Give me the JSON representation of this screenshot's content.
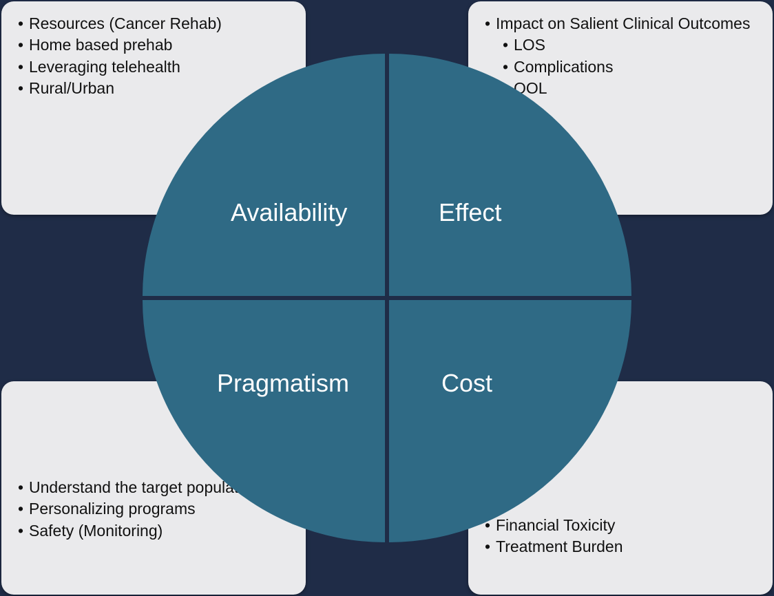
{
  "diagram": {
    "type": "infographic",
    "background_color": "#1f2c47",
    "box_background": "#eaeaec",
    "box_text_color": "#111111",
    "box_border_radius": 18,
    "box_fontsize": 23,
    "circle_color": "#2f6a85",
    "circle_diameter": 710,
    "quadrant_gap": 6,
    "label_color": "#ffffff",
    "label_fontsize": 36,
    "quadrants": {
      "top_left": {
        "label": "Availability",
        "items": [
          {
            "text": "Resources (Cancer Rehab)",
            "level": 0
          },
          {
            "text": "Home based prehab",
            "level": 0
          },
          {
            "text": "Leveraging telehealth",
            "level": 0
          },
          {
            "text": "Rural/Urban",
            "level": 0
          }
        ]
      },
      "top_right": {
        "label": "Effect",
        "items": [
          {
            "text": "Impact on Salient Clinical Outcomes",
            "level": 0
          },
          {
            "text": "LOS",
            "level": 1
          },
          {
            "text": "Complications",
            "level": 1
          },
          {
            "text": "QOL",
            "level": 1
          }
        ]
      },
      "bottom_left": {
        "label": "Pragmatism",
        "items": [
          {
            "text": "Understand the target population",
            "level": 0
          },
          {
            "text": "Personalizing programs",
            "level": 0
          },
          {
            "text": "Safety (Monitoring)",
            "level": 0
          }
        ]
      },
      "bottom_right": {
        "label": "Cost",
        "items": [
          {
            "text": "Financial Toxicity",
            "level": 0
          },
          {
            "text": "Treatment Burden",
            "level": 0
          }
        ]
      }
    }
  }
}
